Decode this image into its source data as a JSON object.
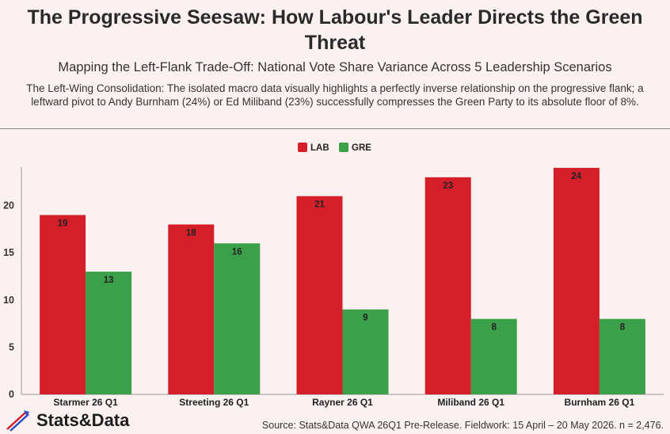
{
  "header": {
    "title": "The Progressive Seesaw: How Labour's Leader Directs the Green Threat",
    "subtitle": "Mapping the Left-Flank Trade-Off: National Vote Share Variance Across 5 Leadership Scenarios",
    "description": "The Left-Wing Consolidation: The isolated macro data visually highlights a perfectly inverse relationship on the progressive flank; a leftward pivot to Andy Burnham (24%) or Ed Miliband (23%) successfully compresses the Green Party to its absolute floor of 8%."
  },
  "chart_data": {
    "type": "bar",
    "categories": [
      "Starmer 26 Q1",
      "Streeting 26 Q1",
      "Rayner 26 Q1",
      "Miliband 26 Q1",
      "Burnham 26 Q1"
    ],
    "series": [
      {
        "name": "LAB",
        "color": "#d41f2a",
        "values": [
          19,
          18,
          21,
          23,
          24
        ]
      },
      {
        "name": "GRE",
        "color": "#3c9f4a",
        "values": [
          13,
          16,
          9,
          8,
          8
        ]
      }
    ],
    "yticks": [
      0,
      5,
      10,
      15,
      20
    ],
    "ylim": [
      0,
      24
    ],
    "grid": false,
    "legend": "top-center"
  },
  "footer": {
    "brand": "Stats&Data",
    "source": "Source: Stats&Data QWA 26Q1 Pre-Release. Fieldwork: 15 April – 20 May 2026. n = 2,476."
  }
}
